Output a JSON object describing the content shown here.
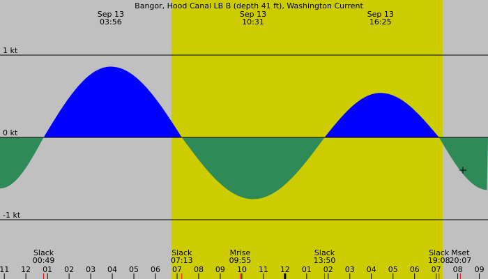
{
  "chart_data": {
    "type": "area",
    "title": "Bangor, Hood Canal LB B (depth 41 ft), Washington Current",
    "unit": "kt",
    "x_axis": {
      "min_hour": 10.8,
      "max_hour": 33.4,
      "tick_labels": [
        {
          "hour": 11,
          "label": "11"
        },
        {
          "hour": 12,
          "label": "12"
        },
        {
          "hour": 13,
          "label": "01"
        },
        {
          "hour": 14,
          "label": "02"
        },
        {
          "hour": 15,
          "label": "03"
        },
        {
          "hour": 16,
          "label": "04"
        },
        {
          "hour": 17,
          "label": "05"
        },
        {
          "hour": 18,
          "label": "06"
        },
        {
          "hour": 19,
          "label": "07"
        },
        {
          "hour": 20,
          "label": "08"
        },
        {
          "hour": 21,
          "label": "09"
        },
        {
          "hour": 22,
          "label": "10"
        },
        {
          "hour": 23,
          "label": "11"
        },
        {
          "hour": 24,
          "label": "12"
        },
        {
          "hour": 25,
          "label": "01"
        },
        {
          "hour": 26,
          "label": "02"
        },
        {
          "hour": 27,
          "label": "03"
        },
        {
          "hour": 28,
          "label": "04"
        },
        {
          "hour": 29,
          "label": "05"
        },
        {
          "hour": 30,
          "label": "06"
        },
        {
          "hour": 31,
          "label": "07"
        },
        {
          "hour": 32,
          "label": "08"
        },
        {
          "hour": 33,
          "label": "09"
        }
      ]
    },
    "y_axis": {
      "min": -1.4,
      "max": 1.65,
      "gridlines": [
        {
          "value": 1,
          "label": "1 kt"
        },
        {
          "value": 0,
          "label": "0 kt"
        },
        {
          "value": -1,
          "label": "-1 kt"
        }
      ]
    },
    "daylight": {
      "start_hour": 18.75,
      "end_hour": 31.3
    },
    "series": [
      {
        "hour": 10.8,
        "value": -0.62
      },
      {
        "hour": 12.82,
        "value": 0
      },
      {
        "hour": 15.93,
        "value": 0.86
      },
      {
        "hour": 19.22,
        "value": 0
      },
      {
        "hour": 22.52,
        "value": -0.75
      },
      {
        "hour": 25.83,
        "value": 0
      },
      {
        "hour": 28.42,
        "value": 0.54
      },
      {
        "hour": 31.13,
        "value": 0
      },
      {
        "hour": 33.4,
        "value": -0.64
      }
    ],
    "peak_labels": [
      {
        "hour": 15.93,
        "date": "Sep 13",
        "time": "03:56"
      },
      {
        "hour": 22.52,
        "date": "Sep 13",
        "time": "10:31"
      },
      {
        "hour": 28.42,
        "date": "Sep 13",
        "time": "16:25"
      }
    ],
    "events": [
      {
        "hour": 12.82,
        "label": "Slack",
        "time": "00:49"
      },
      {
        "hour": 19.22,
        "label": "Slack",
        "time": "07:13"
      },
      {
        "hour": 21.92,
        "label": "Mrise",
        "time": "09:55"
      },
      {
        "hour": 25.83,
        "label": "Slack",
        "time": "13:50"
      },
      {
        "hour": 31.13,
        "label": "Slack",
        "time": "19:08"
      },
      {
        "hour": 32.12,
        "label": "Mset",
        "time": "20:07"
      }
    ],
    "colors": {
      "background": "#c0c0c0",
      "daylight": "#cccc00",
      "flood": "#0000ff",
      "ebb": "#2e8b57",
      "line": "#000000",
      "event_tick": "#ff0000"
    },
    "legend": "none"
  }
}
